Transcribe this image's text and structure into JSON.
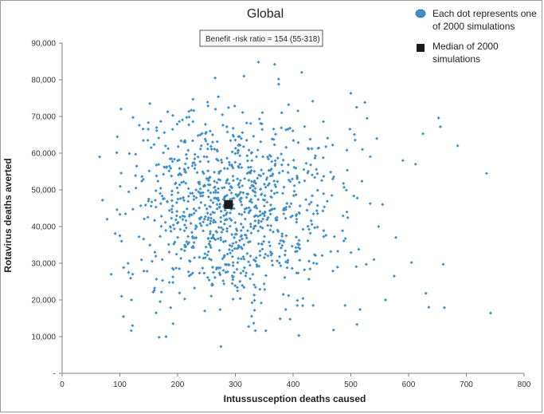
{
  "chart_data": {
    "type": "scatter",
    "title": "Global",
    "xlabel": "Intussusception deaths  caused",
    "ylabel": "Rotavirus deaths averted",
    "xlim": [
      0,
      800
    ],
    "ylim": [
      0,
      90000
    ],
    "x_ticks": [
      "0",
      "100",
      "200",
      "300",
      "400",
      "500",
      "600",
      "700",
      "800"
    ],
    "y_ticks": [
      "-",
      "10,000",
      "20,000",
      "30,000",
      "40,000",
      "50,000",
      "60,000",
      "70,000",
      "80,000",
      "90,000"
    ],
    "annotation": "Benefit -risk ratio = 154 (55-318)",
    "legend": {
      "position": "top-right",
      "simulations": [
        "Each dot represents one",
        "of 2000 simulations"
      ],
      "median": [
        "Median of 2000",
        "simulations"
      ]
    },
    "median": {
      "x": 288,
      "y": 46000
    },
    "n_points": 1000,
    "center": {
      "x": 290,
      "y": 45500
    },
    "spread": {
      "x": 95,
      "y": 14000
    },
    "outliers": [
      {
        "x": 65,
        "y": 59000
      },
      {
        "x": 70,
        "y": 47200
      },
      {
        "x": 78,
        "y": 42000
      },
      {
        "x": 85,
        "y": 27000
      },
      {
        "x": 102,
        "y": 72000
      },
      {
        "x": 100,
        "y": 37500
      },
      {
        "x": 103,
        "y": 36000
      },
      {
        "x": 103,
        "y": 21000
      },
      {
        "x": 120,
        "y": 20000
      },
      {
        "x": 122,
        "y": 13000
      },
      {
        "x": 152,
        "y": 73500
      },
      {
        "x": 168,
        "y": 9800
      },
      {
        "x": 180,
        "y": 10000
      },
      {
        "x": 275,
        "y": 7300
      },
      {
        "x": 265,
        "y": 80500
      },
      {
        "x": 315,
        "y": 81000
      },
      {
        "x": 340,
        "y": 84800
      },
      {
        "x": 368,
        "y": 84200
      },
      {
        "x": 375,
        "y": 78800
      },
      {
        "x": 375,
        "y": 80200
      },
      {
        "x": 410,
        "y": 10300
      },
      {
        "x": 415,
        "y": 82000
      },
      {
        "x": 470,
        "y": 11800
      },
      {
        "x": 500,
        "y": 76300
      },
      {
        "x": 510,
        "y": 72500
      },
      {
        "x": 528,
        "y": 69500
      },
      {
        "x": 545,
        "y": 64000
      },
      {
        "x": 560,
        "y": 20000
      },
      {
        "x": 575,
        "y": 26500
      },
      {
        "x": 578,
        "y": 37000
      },
      {
        "x": 590,
        "y": 58000
      },
      {
        "x": 605,
        "y": 30200
      },
      {
        "x": 612,
        "y": 57000
      },
      {
        "x": 625,
        "y": 65300
      },
      {
        "x": 630,
        "y": 21800
      },
      {
        "x": 635,
        "y": 18000
      },
      {
        "x": 652,
        "y": 69600
      },
      {
        "x": 655,
        "y": 67200
      },
      {
        "x": 660,
        "y": 29700
      },
      {
        "x": 662,
        "y": 17900
      },
      {
        "x": 685,
        "y": 62000
      },
      {
        "x": 735,
        "y": 54500
      },
      {
        "x": 742,
        "y": 16400
      },
      {
        "x": 555,
        "y": 46000
      },
      {
        "x": 548,
        "y": 40000
      },
      {
        "x": 540,
        "y": 31000
      },
      {
        "x": 520,
        "y": 61000
      },
      {
        "x": 490,
        "y": 18500
      }
    ],
    "grid": false,
    "colors": {
      "points": "#3f8fc6",
      "median": "#1a1a1a",
      "axis": "#7f7f7f"
    }
  }
}
